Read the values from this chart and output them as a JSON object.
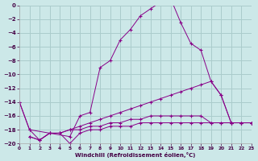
{
  "xlabel": "Windchill (Refroidissement éolien,°C)",
  "background_color": "#cce8e8",
  "grid_color": "#aacccc",
  "line_color": "#880088",
  "xlim": [
    0,
    23
  ],
  "ylim": [
    -20,
    0
  ],
  "xticks": [
    0,
    1,
    2,
    3,
    4,
    5,
    6,
    7,
    8,
    9,
    10,
    11,
    12,
    13,
    14,
    15,
    16,
    17,
    18,
    19,
    20,
    21,
    22,
    23
  ],
  "yticks": [
    0,
    -2,
    -4,
    -6,
    -8,
    -10,
    -12,
    -14,
    -16,
    -18,
    -20
  ],
  "series": [
    {
      "x": [
        0,
        1,
        5,
        6,
        7,
        8,
        9,
        10,
        11,
        12,
        13,
        14,
        15,
        16,
        17,
        18,
        19,
        20,
        21,
        22,
        23
      ],
      "y": [
        -14,
        -18,
        -19,
        -16,
        -15.5,
        -9,
        -8,
        -5,
        -3.5,
        -1.5,
        -0.5,
        0.5,
        1,
        -2.5,
        -5.5,
        -6.5,
        -11,
        -13,
        -17,
        -17,
        -17
      ]
    },
    {
      "x": [
        1,
        2,
        3,
        4,
        5,
        6,
        7,
        8,
        9,
        10,
        11,
        12,
        13,
        14,
        15,
        16,
        17,
        18,
        19,
        20,
        21,
        22,
        23
      ],
      "y": [
        -19,
        -19.5,
        -18.5,
        -18.5,
        -18,
        -17.5,
        -17,
        -16.5,
        -16,
        -15.5,
        -15,
        -14.5,
        -14,
        -13.5,
        -13,
        -12.5,
        -12,
        -11.5,
        -11,
        -13,
        -17,
        -17,
        -17
      ]
    },
    {
      "x": [
        0,
        1,
        2,
        3,
        4,
        5,
        6,
        7,
        8,
        9,
        10,
        11,
        12,
        13,
        14,
        15,
        16,
        17,
        18,
        19,
        20,
        21,
        22,
        23
      ],
      "y": [
        -14,
        -18,
        -19.5,
        -18.5,
        -18.5,
        -18,
        -18,
        -17.5,
        -17.5,
        -17,
        -17,
        -16.5,
        -16.5,
        -16,
        -16,
        -16,
        -16,
        -16,
        -16,
        -17,
        -17,
        -17,
        -17,
        -17
      ]
    },
    {
      "x": [
        1,
        2,
        3,
        4,
        5,
        6,
        7,
        8,
        9,
        10,
        11,
        12,
        13,
        14,
        15,
        16,
        17,
        18,
        19,
        20,
        21,
        22,
        23
      ],
      "y": [
        -19,
        -19.5,
        -18.5,
        -18.5,
        -20,
        -18.5,
        -18,
        -18,
        -17.5,
        -17.5,
        -17.5,
        -17,
        -17,
        -17,
        -17,
        -17,
        -17,
        -17,
        -17,
        -17,
        -17,
        -17,
        -17
      ]
    }
  ]
}
